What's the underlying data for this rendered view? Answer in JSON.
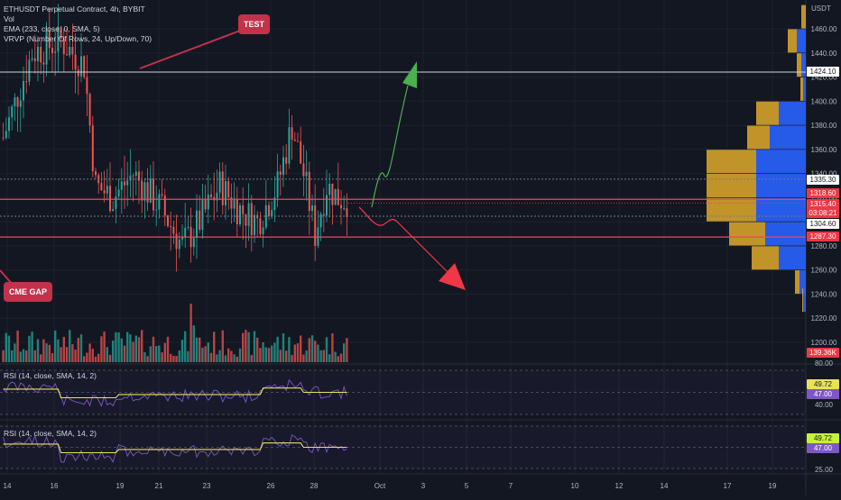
{
  "colors": {
    "background": "#131722",
    "up": "#26a69a",
    "down": "#ef5350",
    "red_line": "#e84a5f",
    "white_line": "#d1d4dc",
    "green_arrow": "#4caf50",
    "red_arrow": "#f23645",
    "rsi_line": "#7e57c2",
    "rsi_ma": "#e8e25a",
    "vp_up": "#2962ff",
    "vp_down": "#d4a22a",
    "callout": "#c2324a"
  },
  "legend": {
    "symbol": "ETHUSDT Perpetual Contract, 4h, BYBIT",
    "vol": "Vol",
    "ema": "EMA (233, close, 0, SMA, 5)",
    "vrvp": "VRVP (Number Of Rows, 24, Up/Down, 70)"
  },
  "callouts": {
    "test": "TEST",
    "cme_gap": "CME GAP"
  },
  "rsi_panels": [
    {
      "legend": "RSI (14, close, SMA, 14, 2)",
      "value": "49.72",
      "ma_value": "47.00"
    },
    {
      "legend": "RSI (14, close, SMA, 14, 2)",
      "value": "49.72",
      "ma_value": "47.00"
    }
  ],
  "price_axis": {
    "currency": "USDT",
    "ticks": [
      "1460.00",
      "1440.00",
      "1420.00",
      "1400.00",
      "1380.00",
      "1360.00",
      "1340.00",
      "1320.00",
      "1300.00",
      "1280.00",
      "1260.00",
      "1240.00",
      "1220.00",
      "1200.00"
    ],
    "ylim": [
      1200,
      1480
    ]
  },
  "rsi_axis": {
    "panel1": [
      "80.00",
      "40.00"
    ],
    "panel2": [
      "25.00"
    ]
  },
  "time_axis": [
    "14",
    "16",
    "19",
    "21",
    "23",
    "26",
    "28",
    "Oct",
    "3",
    "5",
    "7",
    "10",
    "12",
    "14",
    "17",
    "19"
  ],
  "price_labels": [
    {
      "text": "1424.10",
      "style": "white"
    },
    {
      "text": "1335.30",
      "style": "white"
    },
    {
      "text": "1318.60",
      "style": "red"
    },
    {
      "text": "1315.40",
      "style": "current"
    },
    {
      "text": "03:08:21",
      "style": "current"
    },
    {
      "text": "1304.60",
      "style": "white"
    },
    {
      "text": "1287.30",
      "style": "red"
    },
    {
      "text": "139.36K",
      "style": "red"
    }
  ],
  "chart_data": {
    "type": "candlestick",
    "symbol": "ETHUSDT Perpetual Contract",
    "timeframe": "4h",
    "exchange": "BYBIT",
    "horizontal_levels": [
      {
        "price": 1424.1,
        "color": "white"
      },
      {
        "price": 1335.3,
        "color": "white-dotted"
      },
      {
        "price": 1318.6,
        "color": "red"
      },
      {
        "price": 1304.6,
        "color": "white-dotted"
      },
      {
        "price": 1287.3,
        "color": "red"
      }
    ],
    "current_price": 1315.4,
    "volume_last": "139.36K",
    "price_projection": {
      "bullish_target": 1450,
      "bearish_target": 1245
    },
    "volume_profile": [
      {
        "price": 1470,
        "up": 0,
        "down": 0.05
      },
      {
        "price": 1450,
        "up": 0.1,
        "down": 0.1
      },
      {
        "price": 1430,
        "up": 0.05,
        "down": 0.05
      },
      {
        "price": 1410,
        "up": 0.03,
        "down": 0.03
      },
      {
        "price": 1390,
        "up": 0.3,
        "down": 0.25
      },
      {
        "price": 1370,
        "up": 0.4,
        "down": 0.25
      },
      {
        "price": 1350,
        "up": 0.55,
        "down": 0.55
      },
      {
        "price": 1330,
        "up": 0.55,
        "down": 0.55
      },
      {
        "price": 1310,
        "up": 0.55,
        "down": 0.55
      },
      {
        "price": 1290,
        "up": 0.45,
        "down": 0.4
      },
      {
        "price": 1270,
        "up": 0.3,
        "down": 0.3
      },
      {
        "price": 1250,
        "up": 0.07,
        "down": 0.05
      },
      {
        "price": 1235,
        "up": 0.03,
        "down": 0.01
      }
    ]
  }
}
